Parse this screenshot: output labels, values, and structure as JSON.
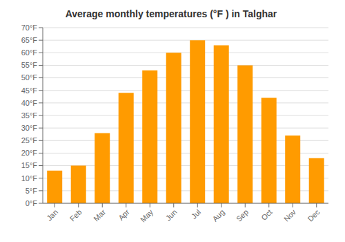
{
  "chart_data": {
    "type": "bar",
    "title": "Average monthly temperatures (°F ) in Talghar",
    "categories": [
      "Jan",
      "Feb",
      "Mar",
      "Apr",
      "May",
      "Jun",
      "Jul",
      "Aug",
      "Sep",
      "Oct",
      "Nov",
      "Dec"
    ],
    "values": [
      13,
      15,
      28,
      44,
      53,
      60,
      65,
      63,
      55,
      42,
      27,
      18
    ],
    "color": "#FF9B00",
    "ylim": [
      0,
      70
    ],
    "yticks": [
      {
        "value": 0,
        "label": "0°F"
      },
      {
        "value": 5,
        "label": "5°F"
      },
      {
        "value": 10,
        "label": "10°F"
      },
      {
        "value": 15,
        "label": "15°F"
      },
      {
        "value": 20,
        "label": "20°F"
      },
      {
        "value": 25,
        "label": "25°F"
      },
      {
        "value": 30,
        "label": "30°F"
      },
      {
        "value": 35,
        "label": "35°F"
      },
      {
        "value": 40,
        "label": "40°F"
      },
      {
        "value": 45,
        "label": "45°F"
      },
      {
        "value": 50,
        "label": "50°F"
      },
      {
        "value": 55,
        "label": "55°F"
      },
      {
        "value": 60,
        "label": "60°F"
      },
      {
        "value": 65,
        "label": "65°F"
      },
      {
        "value": 70,
        "label": "70°F"
      }
    ],
    "grid": true
  }
}
